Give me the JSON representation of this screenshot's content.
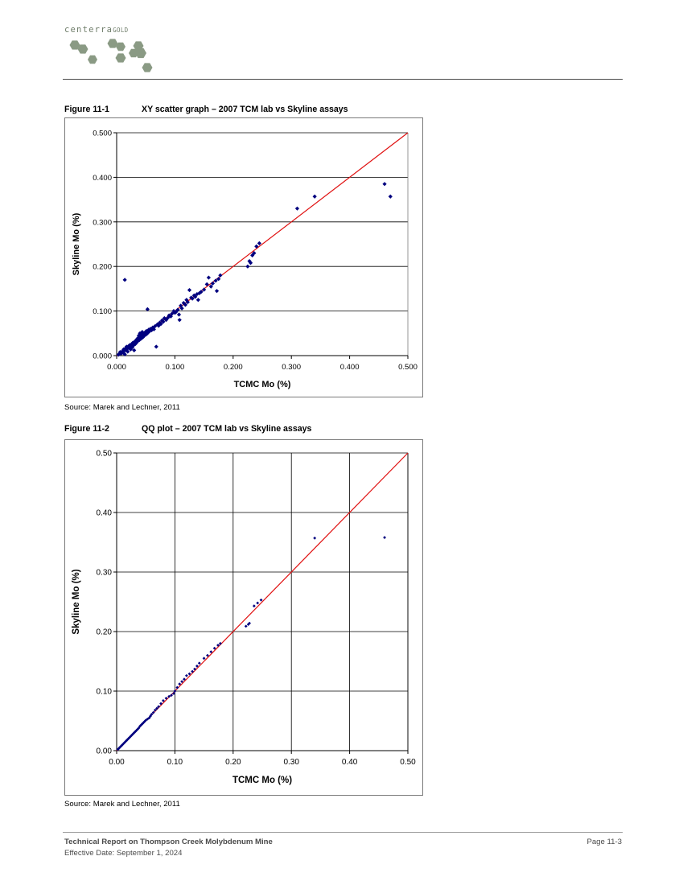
{
  "header": {
    "logo_text": "centerra",
    "logo_subtext": "GOLD",
    "colors": {
      "hexagon": "#8a9a84",
      "logo_text": "#6f7d6a"
    }
  },
  "figures": [
    {
      "number": "Figure 11-1",
      "title": "XY scatter graph – 2007 TCM lab vs Skyline assays",
      "source": "Source: Marek and Lechner, 2011"
    },
    {
      "number": "Figure 11-2",
      "title": "QQ plot – 2007 TCM lab vs Skyline assays",
      "source": "Source: Marek and Lechner, 2011"
    }
  ],
  "chart_data": [
    {
      "type": "scatter",
      "title": "",
      "xlabel": "TCMC Mo (%)",
      "ylabel": "Skyline Mo (%)",
      "xlim": [
        0,
        0.5
      ],
      "ylim": [
        0,
        0.5
      ],
      "xticks": [
        "0.000",
        "0.100",
        "0.200",
        "0.300",
        "0.400",
        "0.500"
      ],
      "yticks": [
        "0.000",
        "0.100",
        "0.200",
        "0.300",
        "0.400",
        "0.500"
      ],
      "grid": "horizontal",
      "marker": "diamond",
      "colors": {
        "points": "#00007f",
        "reference_line": "#e01010"
      },
      "reference_line": [
        [
          0,
          0
        ],
        [
          0.5,
          0.5
        ]
      ],
      "series": [
        {
          "points": [
            [
              0.003,
              0.002
            ],
            [
              0.005,
              0.004
            ],
            [
              0.006,
              0.008
            ],
            [
              0.008,
              0.005
            ],
            [
              0.01,
              0.01
            ],
            [
              0.011,
              0.007
            ],
            [
              0.012,
              0.014
            ],
            [
              0.013,
              0.011
            ],
            [
              0.014,
              0.003
            ],
            [
              0.015,
              0.016
            ],
            [
              0.016,
              0.012
            ],
            [
              0.017,
              0.02
            ],
            [
              0.018,
              0.015
            ],
            [
              0.019,
              0.009
            ],
            [
              0.02,
              0.018
            ],
            [
              0.021,
              0.022
            ],
            [
              0.022,
              0.017
            ],
            [
              0.023,
              0.024
            ],
            [
              0.024,
              0.014
            ],
            [
              0.025,
              0.021
            ],
            [
              0.026,
              0.026
            ],
            [
              0.027,
              0.019
            ],
            [
              0.028,
              0.029
            ],
            [
              0.029,
              0.023
            ],
            [
              0.03,
              0.012
            ],
            [
              0.031,
              0.031
            ],
            [
              0.032,
              0.026
            ],
            [
              0.033,
              0.034
            ],
            [
              0.034,
              0.029
            ],
            [
              0.035,
              0.037
            ],
            [
              0.036,
              0.032
            ],
            [
              0.037,
              0.04
            ],
            [
              0.038,
              0.045
            ],
            [
              0.039,
              0.035
            ],
            [
              0.04,
              0.05
            ],
            [
              0.041,
              0.042
            ],
            [
              0.042,
              0.038
            ],
            [
              0.043,
              0.046
            ],
            [
              0.044,
              0.053
            ],
            [
              0.045,
              0.041
            ],
            [
              0.046,
              0.048
            ],
            [
              0.047,
              0.044
            ],
            [
              0.048,
              0.051
            ],
            [
              0.05,
              0.047
            ],
            [
              0.051,
              0.055
            ],
            [
              0.052,
              0.049
            ],
            [
              0.053,
              0.104
            ],
            [
              0.054,
              0.052
            ],
            [
              0.055,
              0.058
            ],
            [
              0.056,
              0.054
            ],
            [
              0.058,
              0.06
            ],
            [
              0.06,
              0.057
            ],
            [
              0.062,
              0.063
            ],
            [
              0.064,
              0.059
            ],
            [
              0.066,
              0.066
            ],
            [
              0.068,
              0.02
            ],
            [
              0.07,
              0.07
            ],
            [
              0.072,
              0.067
            ],
            [
              0.074,
              0.074
            ],
            [
              0.076,
              0.071
            ],
            [
              0.078,
              0.079
            ],
            [
              0.08,
              0.076
            ],
            [
              0.082,
              0.084
            ],
            [
              0.085,
              0.08
            ],
            [
              0.088,
              0.085
            ],
            [
              0.09,
              0.09
            ],
            [
              0.093,
              0.088
            ],
            [
              0.095,
              0.094
            ],
            [
              0.098,
              0.1
            ],
            [
              0.1,
              0.096
            ],
            [
              0.102,
              0.098
            ],
            [
              0.105,
              0.103
            ],
            [
              0.107,
              0.092
            ],
            [
              0.108,
              0.08
            ],
            [
              0.11,
              0.112
            ],
            [
              0.112,
              0.106
            ],
            [
              0.115,
              0.118
            ],
            [
              0.118,
              0.114
            ],
            [
              0.12,
              0.125
            ],
            [
              0.122,
              0.12
            ],
            [
              0.125,
              0.147
            ],
            [
              0.128,
              0.13
            ],
            [
              0.13,
              0.128
            ],
            [
              0.133,
              0.135
            ],
            [
              0.135,
              0.132
            ],
            [
              0.138,
              0.138
            ],
            [
              0.14,
              0.125
            ],
            [
              0.142,
              0.14
            ],
            [
              0.145,
              0.143
            ],
            [
              0.15,
              0.148
            ],
            [
              0.155,
              0.16
            ],
            [
              0.158,
              0.175
            ],
            [
              0.162,
              0.155
            ],
            [
              0.165,
              0.162
            ],
            [
              0.17,
              0.168
            ],
            [
              0.172,
              0.145
            ],
            [
              0.175,
              0.172
            ],
            [
              0.178,
              0.18
            ],
            [
              0.014,
              0.17
            ],
            [
              0.225,
              0.2
            ],
            [
              0.228,
              0.212
            ],
            [
              0.23,
              0.208
            ],
            [
              0.233,
              0.225
            ],
            [
              0.236,
              0.23
            ],
            [
              0.24,
              0.245
            ],
            [
              0.245,
              0.252
            ],
            [
              0.31,
              0.33
            ],
            [
              0.34,
              0.357
            ],
            [
              0.46,
              0.385
            ],
            [
              0.47,
              0.357
            ]
          ]
        }
      ]
    },
    {
      "type": "scatter",
      "title": "",
      "xlabel": "TCMC Mo (%)",
      "ylabel": "Skyline Mo (%)",
      "xlim": [
        0,
        0.5
      ],
      "ylim": [
        0,
        0.5
      ],
      "xticks": [
        "0.00",
        "0.10",
        "0.20",
        "0.30",
        "0.40",
        "0.50"
      ],
      "yticks": [
        "0.00",
        "0.10",
        "0.20",
        "0.30",
        "0.40",
        "0.50"
      ],
      "grid": "both",
      "marker": "diamond-small",
      "colors": {
        "points": "#00007f",
        "reference_line": "#e01010"
      },
      "reference_line": [
        [
          0,
          0
        ],
        [
          0.5,
          0.5
        ]
      ],
      "series": [
        {
          "points": [
            [
              0.002,
              0.002
            ],
            [
              0.004,
              0.004
            ],
            [
              0.006,
              0.006
            ],
            [
              0.008,
              0.008
            ],
            [
              0.01,
              0.01
            ],
            [
              0.012,
              0.012
            ],
            [
              0.014,
              0.014
            ],
            [
              0.016,
              0.016
            ],
            [
              0.018,
              0.018
            ],
            [
              0.02,
              0.02
            ],
            [
              0.022,
              0.022
            ],
            [
              0.024,
              0.024
            ],
            [
              0.026,
              0.026
            ],
            [
              0.028,
              0.028
            ],
            [
              0.03,
              0.03
            ],
            [
              0.032,
              0.032
            ],
            [
              0.034,
              0.034
            ],
            [
              0.036,
              0.036
            ],
            [
              0.038,
              0.038
            ],
            [
              0.04,
              0.041
            ],
            [
              0.042,
              0.043
            ],
            [
              0.044,
              0.045
            ],
            [
              0.046,
              0.047
            ],
            [
              0.048,
              0.049
            ],
            [
              0.05,
              0.051
            ],
            [
              0.053,
              0.053
            ],
            [
              0.056,
              0.055
            ],
            [
              0.058,
              0.058
            ],
            [
              0.06,
              0.061
            ],
            [
              0.063,
              0.064
            ],
            [
              0.066,
              0.068
            ],
            [
              0.069,
              0.071
            ],
            [
              0.072,
              0.074
            ],
            [
              0.076,
              0.079
            ],
            [
              0.08,
              0.084
            ],
            [
              0.085,
              0.088
            ],
            [
              0.09,
              0.091
            ],
            [
              0.094,
              0.093
            ],
            [
              0.098,
              0.096
            ],
            [
              0.1,
              0.1
            ],
            [
              0.104,
              0.106
            ],
            [
              0.108,
              0.112
            ],
            [
              0.112,
              0.116
            ],
            [
              0.116,
              0.12
            ],
            [
              0.12,
              0.126
            ],
            [
              0.125,
              0.129
            ],
            [
              0.13,
              0.133
            ],
            [
              0.134,
              0.137
            ],
            [
              0.138,
              0.142
            ],
            [
              0.142,
              0.147
            ],
            [
              0.15,
              0.155
            ],
            [
              0.156,
              0.16
            ],
            [
              0.162,
              0.166
            ],
            [
              0.168,
              0.172
            ],
            [
              0.174,
              0.177
            ],
            [
              0.178,
              0.18
            ],
            [
              0.222,
              0.209
            ],
            [
              0.226,
              0.212
            ],
            [
              0.228,
              0.214
            ],
            [
              0.236,
              0.243
            ],
            [
              0.242,
              0.248
            ],
            [
              0.248,
              0.253
            ],
            [
              0.34,
              0.357
            ],
            [
              0.46,
              0.358
            ]
          ]
        }
      ]
    }
  ],
  "footer": {
    "report_title": "Technical Report on Thompson Creek Molybdenum Mine",
    "effective_date": "Effective Date: September 1, 2024",
    "page": "Page 11-3"
  }
}
